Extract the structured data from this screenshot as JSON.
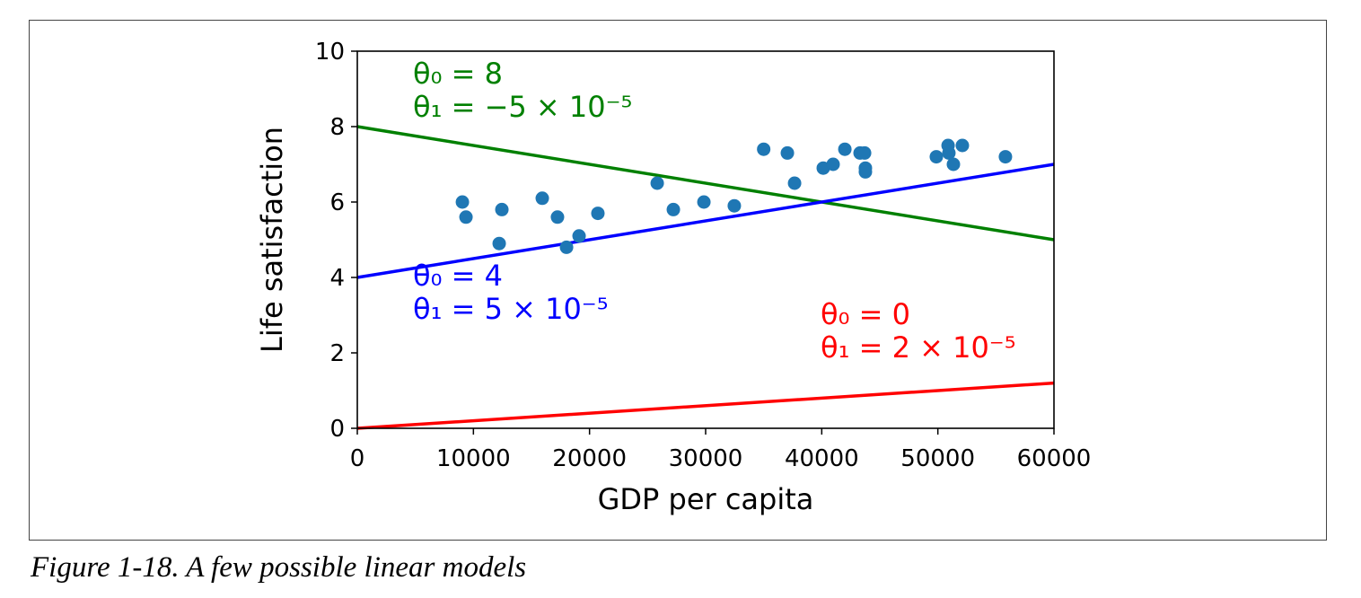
{
  "caption": "Figure 1-18. A few possible linear models",
  "chart_data": {
    "type": "scatter",
    "xlabel": "GDP per capita",
    "ylabel": "Life satisfaction",
    "xlim": [
      0,
      60000
    ],
    "ylim": [
      0,
      10
    ],
    "xticks": [
      0,
      10000,
      20000,
      30000,
      40000,
      50000,
      60000
    ],
    "yticks": [
      0,
      2,
      4,
      6,
      8,
      10
    ],
    "grid": false,
    "points": {
      "color": "#1f77b4",
      "x": [
        9050,
        9360,
        12450,
        12220,
        15930,
        17240,
        18020,
        19100,
        20720,
        25830,
        27220,
        29850,
        32470,
        35000,
        37040,
        37660,
        40130,
        40980,
        41990,
        43300,
        43690,
        43760,
        43760,
        49870,
        50880,
        50950,
        51340,
        52110,
        55820
      ],
      "y": [
        6.0,
        5.6,
        5.8,
        4.9,
        6.1,
        5.6,
        4.8,
        5.1,
        5.7,
        6.5,
        5.8,
        6.0,
        5.9,
        7.4,
        7.3,
        6.5,
        6.9,
        7.0,
        7.4,
        7.3,
        7.3,
        6.9,
        6.8,
        7.2,
        7.5,
        7.3,
        7.0,
        7.5,
        7.2
      ]
    },
    "lines": [
      {
        "theta0": 8,
        "theta1": -5e-05,
        "color": "#008000",
        "label0": "θ₀ = 8",
        "label1": "θ₁ = −5 × 10⁻⁵"
      },
      {
        "theta0": 4,
        "theta1": 5e-05,
        "color": "#0000ff",
        "label0": "θ₀ = 4",
        "label1": "θ₁ = 5 × 10⁻⁵"
      },
      {
        "theta0": 0,
        "theta1": 2e-05,
        "color": "#ff0000",
        "label0": "θ₀ = 0",
        "label1": "θ₁ = 2 × 10⁻⁵"
      }
    ]
  }
}
